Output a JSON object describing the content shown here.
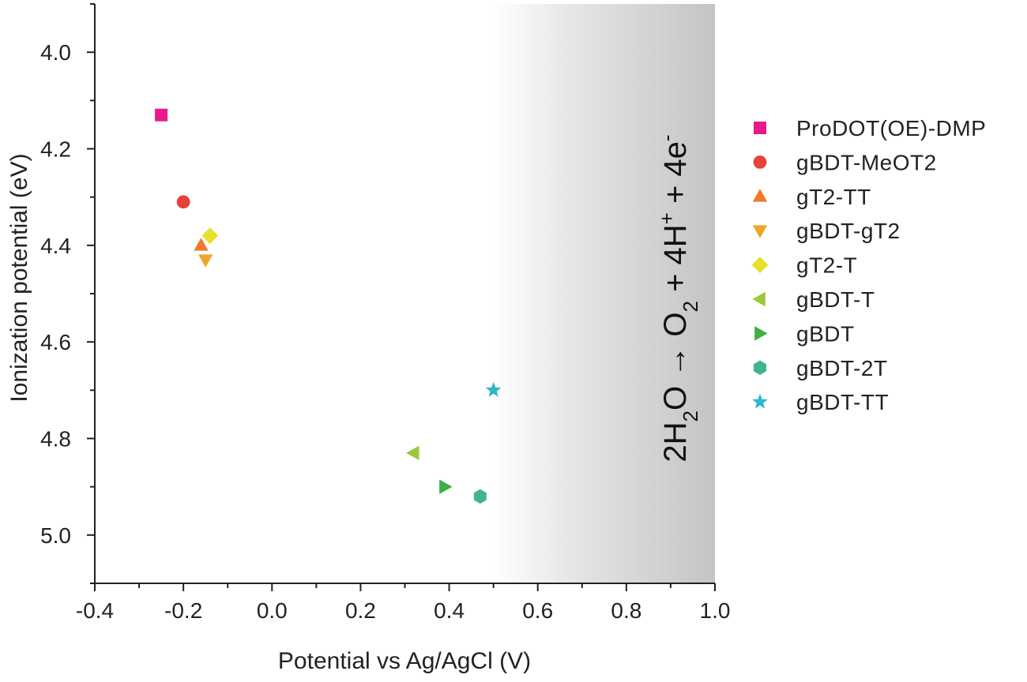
{
  "chart_data": {
    "type": "scatter",
    "title": "",
    "xlabel": "Potential vs Ag/AgCl (V)",
    "ylabel": "Ionization potential (eV)",
    "xlim": [
      -0.4,
      1.0
    ],
    "ylim": [
      3.9,
      5.1
    ],
    "y_inverted": true,
    "x_ticks": [
      "-0.4",
      "-0.2",
      "0.0",
      "0.2",
      "0.4",
      "0.6",
      "0.8",
      "1.0"
    ],
    "y_ticks": [
      "4.0",
      "4.2",
      "4.4",
      "4.6",
      "4.8",
      "5.0"
    ],
    "grid": false,
    "legend_position": "right",
    "shaded_region": {
      "x_start": 0.5,
      "x_end": 1.0,
      "gradient": "white-to-gray"
    },
    "annotation": {
      "parts": [
        {
          "text": "2H",
          "shift": "none"
        },
        {
          "text": "2",
          "shift": "sub"
        },
        {
          "text": "O ",
          "shift": "none"
        },
        {
          "text": "→",
          "shift": "none"
        },
        {
          "text": " O",
          "shift": "none"
        },
        {
          "text": "2",
          "shift": "sub"
        },
        {
          "text": " + 4H",
          "shift": "none"
        },
        {
          "text": "+",
          "shift": "super"
        },
        {
          "text": " + 4e",
          "shift": "none"
        },
        {
          "text": "-",
          "shift": "super"
        }
      ]
    },
    "series": [
      {
        "name": "ProDOT(OE)-DMP",
        "marker": "square",
        "color": "#e8198b",
        "x": -0.25,
        "y": 4.13
      },
      {
        "name": "gBDT-MeOT2",
        "marker": "circle",
        "color": "#e8413c",
        "x": -0.2,
        "y": 4.31
      },
      {
        "name": "gT2-TT",
        "marker": "triangle-up",
        "color": "#f07a2a",
        "x": -0.16,
        "y": 4.4
      },
      {
        "name": "gBDT-gT2",
        "marker": "triangle-down",
        "color": "#f0a428",
        "x": -0.15,
        "y": 4.43
      },
      {
        "name": "gT2-T",
        "marker": "diamond",
        "color": "#e5e02a",
        "x": -0.14,
        "y": 4.38
      },
      {
        "name": "gBDT-T",
        "marker": "triangle-left",
        "color": "#9bc83a",
        "x": 0.32,
        "y": 4.83
      },
      {
        "name": "gBDT",
        "marker": "triangle-right",
        "color": "#3cb043",
        "x": 0.39,
        "y": 4.9
      },
      {
        "name": "gBDT-2T",
        "marker": "hexagon",
        "color": "#3fb58a",
        "x": 0.47,
        "y": 4.92
      },
      {
        "name": "gBDT-TT",
        "marker": "star",
        "color": "#2fb6c8",
        "x": 0.5,
        "y": 4.7
      }
    ]
  }
}
